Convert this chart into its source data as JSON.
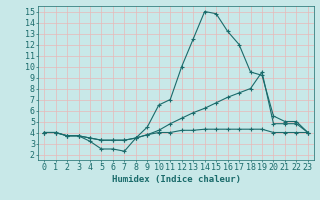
{
  "xlabel": "Humidex (Indice chaleur)",
  "xlim": [
    -0.5,
    23.5
  ],
  "ylim": [
    1.5,
    15.5
  ],
  "xticks": [
    0,
    1,
    2,
    3,
    4,
    5,
    6,
    7,
    8,
    9,
    10,
    11,
    12,
    13,
    14,
    15,
    16,
    17,
    18,
    19,
    20,
    21,
    22,
    23
  ],
  "yticks": [
    2,
    3,
    4,
    5,
    6,
    7,
    8,
    9,
    10,
    11,
    12,
    13,
    14,
    15
  ],
  "bg_color": "#c8e8e8",
  "grid_color": "#e8b8b8",
  "line_color": "#1a6b6b",
  "line1_x": [
    0,
    1,
    2,
    3,
    4,
    5,
    6,
    7,
    8,
    9,
    10,
    11,
    12,
    13,
    14,
    15,
    16,
    17,
    18,
    19,
    20,
    21,
    22,
    23
  ],
  "line1_y": [
    4,
    4,
    3.7,
    3.7,
    3.2,
    2.5,
    2.5,
    2.3,
    3.5,
    4.5,
    6.5,
    7.0,
    10.0,
    12.5,
    15.0,
    14.8,
    13.2,
    12.0,
    9.5,
    9.2,
    5.5,
    5.0,
    5.0,
    4.0
  ],
  "line2_x": [
    0,
    1,
    2,
    3,
    4,
    5,
    6,
    7,
    8,
    9,
    10,
    11,
    12,
    13,
    14,
    15,
    16,
    17,
    18,
    19,
    20,
    21,
    22,
    23
  ],
  "line2_y": [
    4,
    4,
    3.7,
    3.7,
    3.5,
    3.3,
    3.3,
    3.3,
    3.5,
    3.8,
    4.2,
    4.8,
    5.3,
    5.8,
    6.2,
    6.7,
    7.2,
    7.6,
    8.0,
    9.5,
    4.8,
    4.8,
    4.8,
    4.0
  ],
  "line3_x": [
    0,
    1,
    2,
    3,
    4,
    5,
    6,
    7,
    8,
    9,
    10,
    11,
    12,
    13,
    14,
    15,
    16,
    17,
    18,
    19,
    20,
    21,
    22,
    23
  ],
  "line3_y": [
    4,
    4,
    3.7,
    3.7,
    3.5,
    3.3,
    3.3,
    3.3,
    3.5,
    3.8,
    4.0,
    4.0,
    4.2,
    4.2,
    4.3,
    4.3,
    4.3,
    4.3,
    4.3,
    4.3,
    4.0,
    4.0,
    4.0,
    4.0
  ],
  "font_size": 6.5,
  "marker": "+",
  "markersize": 3,
  "linewidth": 0.8
}
